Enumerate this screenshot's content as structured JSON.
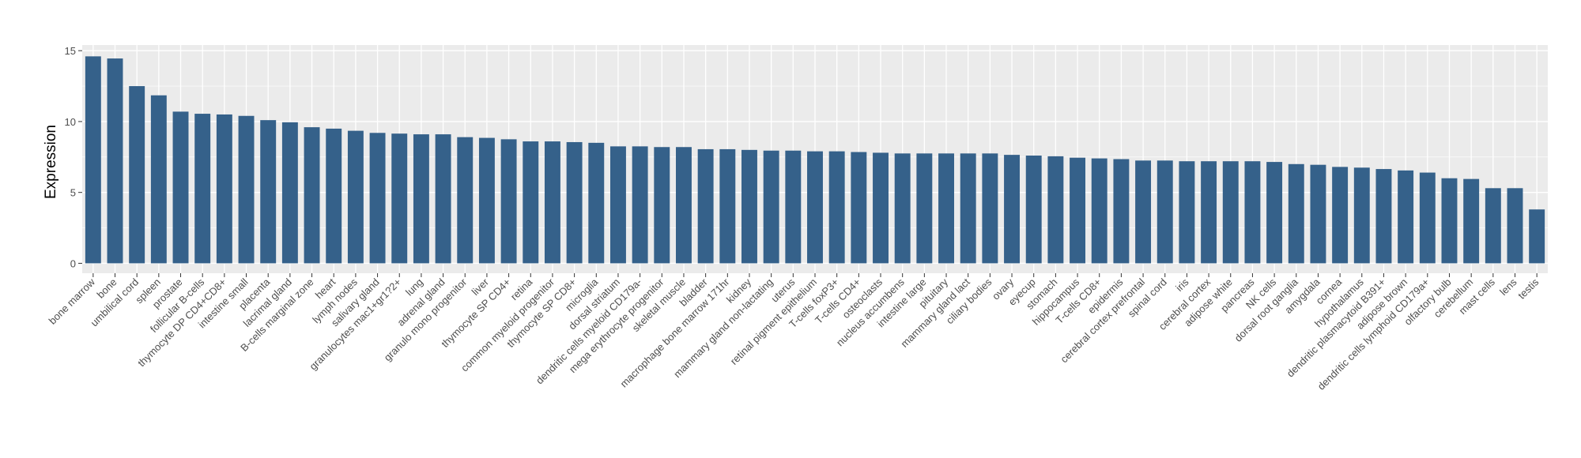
{
  "chart_data": {
    "type": "bar",
    "title": "",
    "xlabel": "",
    "ylabel": "Expression",
    "ylim": [
      -0.7,
      15.4
    ],
    "yticks": [
      0,
      5,
      10,
      15
    ],
    "ytick_labels": [
      "0",
      "5",
      "10",
      "15"
    ],
    "grid": true,
    "legend": "none",
    "bar_color": "#35618A",
    "panel_color": "#EBEBEB",
    "grid_color": "#FFFFFF",
    "categories": [
      "bone marrow",
      "bone",
      "umbilical cord",
      "spleen",
      "prostate",
      "follicular B-cells",
      "thymocyte DP CD4+CD8+",
      "intestine small",
      "placenta",
      "lacrimal gland",
      "B-cells marginal zone",
      "heart",
      "lymph nodes",
      "salivary gland",
      "granulocytes mac1+gr1?2+",
      "lung",
      "adrenal gland",
      "granulo mono progenitor",
      "liver",
      "thymocyte SP CD4+",
      "retina",
      "common myeloid progenitor",
      "thymocyte SP CD8+",
      "microglia",
      "dorsal striatum",
      "dendritic cells myeloid CD179a-",
      "mega erythrocyte progenitor",
      "skeletal muscle",
      "bladder",
      "macrophage bone marrow 171hr",
      "kidney",
      "mammary gland non-lactating",
      "uterus",
      "retinal pigment epithelium",
      "T-cells foxP3+",
      "T-cells CD4+",
      "osteoclasts",
      "nucleus accumbens",
      "intestine large",
      "pituitary",
      "mammary gland  lact",
      "ciliary bodies",
      "ovary",
      "eyecup",
      "stomach",
      "hippocampus",
      "T-cells CD8+",
      "epidermis",
      "cerebral cortex prefrontal",
      "spinal cord",
      "iris",
      "cerebral cortex",
      "adipose white",
      "pancreas",
      "NK cells",
      "dorsal root ganglia",
      "amygdala",
      "cornea",
      "hypothalamus",
      "dendritic plasmacytoid B391+",
      "adipose brown",
      "dendritic cells lymphoid CD179a+",
      "olfactory bulb",
      "cerebellum",
      "mast cells",
      "lens",
      "testis"
    ],
    "values": [
      14.6,
      14.45,
      12.5,
      11.85,
      10.7,
      10.55,
      10.5,
      10.4,
      10.1,
      9.95,
      9.6,
      9.5,
      9.35,
      9.2,
      9.15,
      9.1,
      9.1,
      8.9,
      8.85,
      8.75,
      8.6,
      8.6,
      8.55,
      8.5,
      8.25,
      8.25,
      8.2,
      8.2,
      8.05,
      8.05,
      8.0,
      7.95,
      7.95,
      7.9,
      7.9,
      7.85,
      7.8,
      7.75,
      7.75,
      7.75,
      7.75,
      7.75,
      7.65,
      7.6,
      7.55,
      7.45,
      7.4,
      7.35,
      7.25,
      7.25,
      7.2,
      7.2,
      7.2,
      7.2,
      7.15,
      7.0,
      6.95,
      6.8,
      6.75,
      6.65,
      6.55,
      6.4,
      6.0,
      5.95,
      5.3,
      5.3,
      3.8
    ]
  }
}
